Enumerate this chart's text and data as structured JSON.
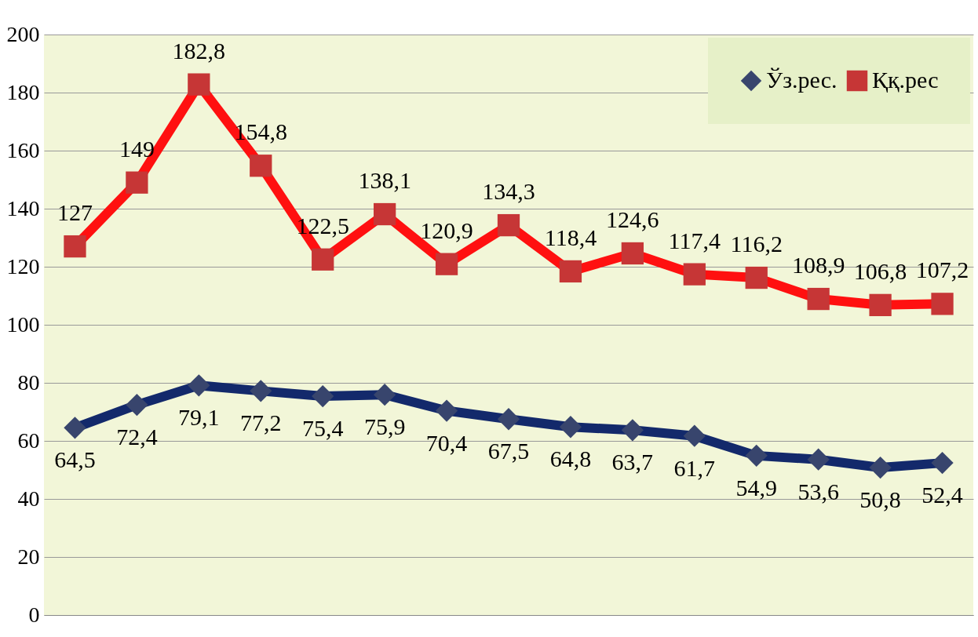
{
  "chart_data": {
    "type": "line",
    "categories": [
      null,
      null,
      null,
      null,
      null,
      null,
      null,
      null,
      null,
      null,
      null,
      null,
      null,
      null,
      null
    ],
    "series": [
      {
        "name": "Ўз.рес.",
        "color": "#13296b",
        "marker": "diamond",
        "values": [
          64.5,
          72.4,
          79.1,
          77.2,
          75.4,
          75.9,
          70.4,
          67.5,
          64.8,
          63.7,
          61.7,
          54.9,
          53.6,
          50.8,
          52.4
        ],
        "value_labels": [
          "64,5",
          "72,4",
          "79,1",
          "77,2",
          "75,4",
          "75,9",
          "70,4",
          "67,5",
          "64,8",
          "63,7",
          "61,7",
          "54,9",
          "53,6",
          "50,8",
          "52,4"
        ]
      },
      {
        "name": "Ққ.рес",
        "color": "#ff1010",
        "marker": "square",
        "values": [
          127,
          149,
          182.8,
          154.8,
          122.5,
          138.1,
          120.9,
          134.3,
          118.4,
          124.6,
          117.4,
          116.2,
          108.9,
          106.8,
          107.2
        ],
        "value_labels": [
          "127",
          "149",
          "182,8",
          "154,8",
          "122,5",
          "138,1",
          "120,9",
          "134,3",
          "118,4",
          "124,6",
          "117,4",
          "116,2",
          "108,9",
          "106,8",
          "107,2"
        ]
      }
    ],
    "ylim": [
      0,
      200
    ],
    "yticks": [
      0,
      20,
      40,
      60,
      80,
      100,
      120,
      140,
      160,
      180,
      200
    ],
    "grid": "y",
    "legend": "top right",
    "tick_labels": "y"
  }
}
